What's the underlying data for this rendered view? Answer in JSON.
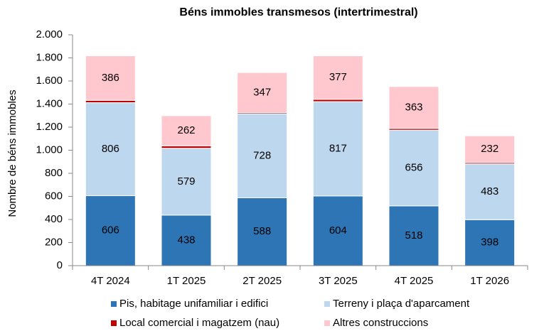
{
  "chart_data": {
    "type": "stacked_bar",
    "title": "Béns immobles transmesos  (intertrimestral)",
    "y_label": "Nombre de béns immobles",
    "categories": [
      "4T 2024",
      "1T 2025",
      "2T 2025",
      "3T 2025",
      "4T 2025",
      "1T 2026"
    ],
    "series": [
      {
        "name": "Pis, habitage unifamiliar i edifici",
        "color": "#2e75b6",
        "values": [
          606,
          438,
          588,
          604,
          518,
          398
        ]
      },
      {
        "name": "Terreny i plaça d'aparcament",
        "color": "#bdd7ee",
        "values": [
          806,
          579,
          728,
          817,
          656,
          483
        ]
      },
      {
        "name": "Local comercial i magatzem (nau)",
        "color": "#c00000",
        "values": [
          20,
          20,
          10,
          20,
          15,
          12
        ]
      },
      {
        "name": "Altres construccions",
        "color": "#ffc7ce",
        "values": [
          386,
          262,
          347,
          377,
          363,
          232
        ]
      }
    ],
    "ylim": [
      0,
      2000
    ],
    "yticks": [
      0,
      200,
      400,
      600,
      800,
      {
        "value": 1000,
        "label": "1.000"
      },
      {
        "value": 1200,
        "label": "1.200"
      },
      {
        "value": 1400,
        "label": "1.400"
      },
      {
        "value": 1600,
        "label": "1.600"
      },
      {
        "value": 1800,
        "label": "1.800"
      },
      {
        "value": 2000,
        "label": "2.000"
      }
    ]
  }
}
